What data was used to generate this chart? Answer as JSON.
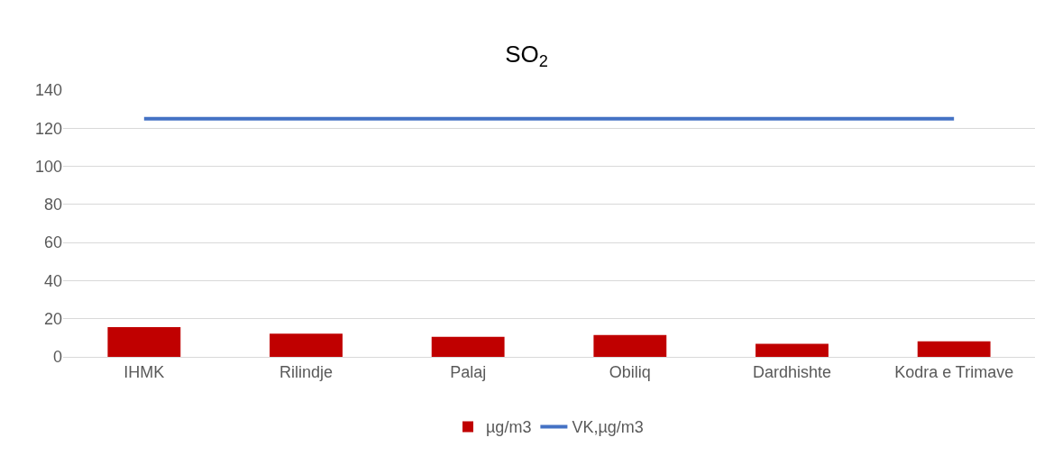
{
  "chart_data": {
    "type": "bar",
    "title": "SO$_{2}$",
    "categories": [
      "IHMK",
      "Rilindje",
      "Palaj",
      "Obiliq",
      "Dardhishte",
      "Kodra e Trimave"
    ],
    "series": [
      {
        "name": "µg/m3",
        "color": "#c00000",
        "values": [
          15.6,
          12.2,
          10.5,
          11.5,
          6.8,
          8.1
        ]
      },
      {
        "name": "VK,µg/m3",
        "type": "line",
        "color": "#4472c4",
        "values": [
          125,
          125,
          125,
          125,
          125,
          125
        ]
      }
    ],
    "ylim": [
      0,
      140
    ],
    "yticks": [
      0,
      20,
      40,
      60,
      80,
      100,
      120,
      140
    ],
    "grid": "y",
    "legend": "bottom",
    "marker": "none",
    "line_style": "solid"
  }
}
